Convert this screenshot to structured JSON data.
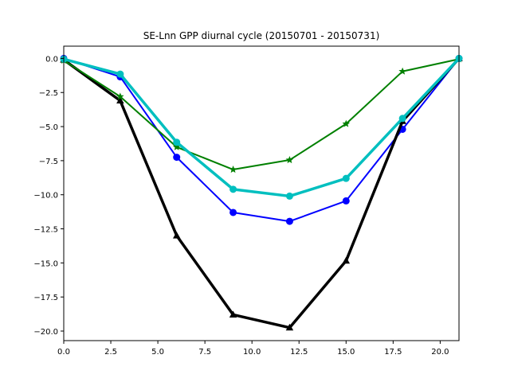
{
  "chart_data": {
    "type": "line",
    "title": "SE-Lnn GPP diurnal cycle (20150701 - 20150731)",
    "xlabel": "",
    "ylabel": "",
    "xlim": [
      0,
      21
    ],
    "ylim": [
      -20.7,
      0.9
    ],
    "x_ticks": [
      0.0,
      2.5,
      5.0,
      7.5,
      10.0,
      12.5,
      15.0,
      17.5,
      20.0
    ],
    "x_tick_labels": [
      "0.0",
      "2.5",
      "5.0",
      "7.5",
      "10.0",
      "12.5",
      "15.0",
      "17.5",
      "20.0"
    ],
    "y_ticks": [
      0.0,
      -2.5,
      -5.0,
      -7.5,
      -10.0,
      -12.5,
      -15.0,
      -17.5,
      -20.0
    ],
    "y_tick_labels": [
      "0.0",
      "−2.5",
      "−5.0",
      "−7.5",
      "−10.0",
      "−12.5",
      "−15.0",
      "−17.5",
      "−20.0"
    ],
    "grid": false,
    "x": [
      0,
      3,
      6,
      9,
      12,
      15,
      18,
      21
    ],
    "series": [
      {
        "color": "#0000ff",
        "marker": "circle",
        "line_width": "normal",
        "values": [
          0.0,
          -1.35,
          -7.25,
          -11.3,
          -11.95,
          -10.45,
          -5.2,
          0.0
        ]
      },
      {
        "color": "#000000",
        "marker": "triangle",
        "line_width": "thick",
        "values": [
          -0.1,
          -3.1,
          -13.0,
          -18.8,
          -19.75,
          -14.85,
          -4.6,
          0.0
        ]
      },
      {
        "color": "#008000",
        "marker": "star",
        "line_width": "normal",
        "values": [
          -0.15,
          -2.8,
          -6.5,
          -8.15,
          -7.45,
          -4.8,
          -0.95,
          -0.05
        ]
      },
      {
        "color": "#00bfbf",
        "marker": "circle",
        "line_width": "thick",
        "values": [
          -0.05,
          -1.15,
          -6.15,
          -9.6,
          -10.1,
          -8.8,
          -4.4,
          0.0
        ]
      }
    ]
  }
}
